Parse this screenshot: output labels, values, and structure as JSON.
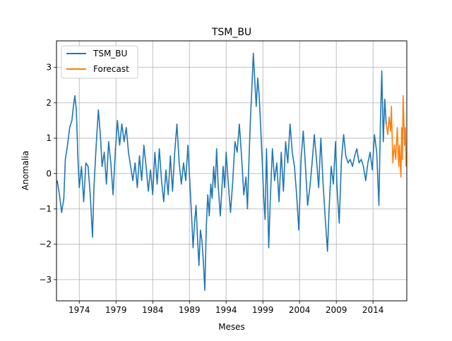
{
  "chart_data": {
    "type": "line",
    "title": "TSM_BU",
    "xlabel": "Meses",
    "ylabel": "Anomalia",
    "xlim": [
      1970.9,
      2018.6
    ],
    "ylim": [
      -3.6,
      3.75
    ],
    "x_ticks": [
      1974,
      1979,
      1984,
      1989,
      1994,
      1999,
      2004,
      2009,
      2014
    ],
    "x_tick_labels": [
      "1974",
      "1979",
      "1984",
      "1989",
      "1994",
      "1999",
      "2004",
      "2009",
      "2014"
    ],
    "y_ticks": [
      -3,
      -2,
      -1,
      0,
      1,
      2,
      3
    ],
    "y_tick_labels": [
      "−3",
      "−2",
      "−1",
      "0",
      "1",
      "2",
      "3"
    ],
    "grid": true,
    "legend_position": "upper-left",
    "series": [
      {
        "name": "TSM_BU",
        "color": "#1f77b4",
        "points": [
          [
            1971.0,
            -0.2
          ],
          [
            1971.3,
            -0.6
          ],
          [
            1971.6,
            -1.1
          ],
          [
            1971.9,
            -0.7
          ],
          [
            1972.1,
            0.4
          ],
          [
            1972.4,
            0.8
          ],
          [
            1972.7,
            1.3
          ],
          [
            1973.0,
            1.5
          ],
          [
            1973.2,
            1.9
          ],
          [
            1973.4,
            2.2
          ],
          [
            1973.6,
            1.8
          ],
          [
            1973.8,
            0.5
          ],
          [
            1974.0,
            -0.4
          ],
          [
            1974.3,
            0.2
          ],
          [
            1974.6,
            -0.8
          ],
          [
            1974.9,
            0.3
          ],
          [
            1975.2,
            0.2
          ],
          [
            1975.5,
            -0.6
          ],
          [
            1975.8,
            -1.8
          ],
          [
            1976.0,
            -0.4
          ],
          [
            1976.3,
            0.8
          ],
          [
            1976.6,
            1.8
          ],
          [
            1976.9,
            1.0
          ],
          [
            1977.1,
            0.2
          ],
          [
            1977.4,
            0.6
          ],
          [
            1977.7,
            -0.3
          ],
          [
            1978.0,
            0.9
          ],
          [
            1978.3,
            0.3
          ],
          [
            1978.6,
            -0.6
          ],
          [
            1978.9,
            0.6
          ],
          [
            1979.2,
            1.5
          ],
          [
            1979.5,
            0.8
          ],
          [
            1979.8,
            1.4
          ],
          [
            1980.1,
            0.9
          ],
          [
            1980.4,
            1.3
          ],
          [
            1980.7,
            0.6
          ],
          [
            1981.0,
            0.2
          ],
          [
            1981.3,
            -0.2
          ],
          [
            1981.6,
            0.3
          ],
          [
            1981.9,
            -0.4
          ],
          [
            1982.2,
            0.5
          ],
          [
            1982.5,
            -0.2
          ],
          [
            1982.8,
            0.8
          ],
          [
            1983.1,
            0.2
          ],
          [
            1983.4,
            -0.5
          ],
          [
            1983.7,
            0.1
          ],
          [
            1984.0,
            -0.6
          ],
          [
            1984.3,
            0.6
          ],
          [
            1984.6,
            -0.3
          ],
          [
            1984.9,
            0.7
          ],
          [
            1985.2,
            -0.2
          ],
          [
            1985.5,
            -0.8
          ],
          [
            1985.8,
            0.1
          ],
          [
            1986.1,
            -0.6
          ],
          [
            1986.4,
            0.5
          ],
          [
            1986.7,
            -0.5
          ],
          [
            1987.0,
            0.6
          ],
          [
            1987.3,
            1.4
          ],
          [
            1987.6,
            0.3
          ],
          [
            1987.9,
            -0.3
          ],
          [
            1988.2,
            0.3
          ],
          [
            1988.5,
            -0.2
          ],
          [
            1988.8,
            0.8
          ],
          [
            1989.1,
            -0.4
          ],
          [
            1989.3,
            -1.2
          ],
          [
            1989.5,
            -2.1
          ],
          [
            1989.7,
            -1.4
          ],
          [
            1989.9,
            -0.9
          ],
          [
            1990.1,
            -1.8
          ],
          [
            1990.3,
            -2.6
          ],
          [
            1990.5,
            -1.6
          ],
          [
            1990.7,
            -1.9
          ],
          [
            1990.9,
            -2.5
          ],
          [
            1991.1,
            -3.3
          ],
          [
            1991.3,
            -1.5
          ],
          [
            1991.5,
            -0.6
          ],
          [
            1991.7,
            -1.2
          ],
          [
            1991.9,
            -0.3
          ],
          [
            1992.1,
            -0.7
          ],
          [
            1992.3,
            0.2
          ],
          [
            1992.5,
            -0.4
          ],
          [
            1992.7,
            0.7
          ],
          [
            1992.9,
            -0.3
          ],
          [
            1993.2,
            -1.2
          ],
          [
            1993.4,
            -0.5
          ],
          [
            1993.6,
            0.2
          ],
          [
            1993.8,
            -0.4
          ],
          [
            1994.0,
            0.6
          ],
          [
            1994.3,
            -0.3
          ],
          [
            1994.6,
            -1.1
          ],
          [
            1994.9,
            -0.2
          ],
          [
            1995.2,
            0.9
          ],
          [
            1995.5,
            0.6
          ],
          [
            1995.8,
            1.4
          ],
          [
            1996.1,
            0.5
          ],
          [
            1996.4,
            -0.6
          ],
          [
            1996.7,
            -0.1
          ],
          [
            1996.9,
            -1.0
          ],
          [
            1997.1,
            0.3
          ],
          [
            1997.3,
            1.5
          ],
          [
            1997.5,
            2.4
          ],
          [
            1997.7,
            3.4
          ],
          [
            1997.9,
            2.6
          ],
          [
            1998.1,
            1.9
          ],
          [
            1998.3,
            2.7
          ],
          [
            1998.5,
            2.2
          ],
          [
            1998.7,
            1.3
          ],
          [
            1998.9,
            0.4
          ],
          [
            1999.1,
            -0.6
          ],
          [
            1999.3,
            -1.3
          ],
          [
            1999.5,
            0.7
          ],
          [
            1999.8,
            -2.1
          ],
          [
            2000.0,
            -0.8
          ],
          [
            2000.3,
            0.7
          ],
          [
            2000.6,
            -0.2
          ],
          [
            2000.9,
            0.3
          ],
          [
            2001.2,
            -0.8
          ],
          [
            2001.5,
            0.6
          ],
          [
            2001.8,
            -0.5
          ],
          [
            2002.1,
            0.9
          ],
          [
            2002.4,
            0.3
          ],
          [
            2002.7,
            1.4
          ],
          [
            2003.0,
            0.6
          ],
          [
            2003.3,
            0.2
          ],
          [
            2003.6,
            -0.6
          ],
          [
            2003.9,
            -1.6
          ],
          [
            2004.2,
            0.4
          ],
          [
            2004.5,
            1.2
          ],
          [
            2004.8,
            0.2
          ],
          [
            2005.1,
            -0.9
          ],
          [
            2005.4,
            -0.4
          ],
          [
            2005.7,
            0.3
          ],
          [
            2006.0,
            1.1
          ],
          [
            2006.3,
            0.4
          ],
          [
            2006.6,
            -0.4
          ],
          [
            2006.9,
            1.0
          ],
          [
            2007.2,
            -0.3
          ],
          [
            2007.5,
            -1.3
          ],
          [
            2007.8,
            -2.2
          ],
          [
            2008.0,
            -1.1
          ],
          [
            2008.3,
            0.2
          ],
          [
            2008.6,
            -0.3
          ],
          [
            2008.9,
            0.9
          ],
          [
            2009.1,
            -0.4
          ],
          [
            2009.4,
            -1.4
          ],
          [
            2009.7,
            0.4
          ],
          [
            2010.0,
            1.1
          ],
          [
            2010.3,
            0.5
          ],
          [
            2010.6,
            0.3
          ],
          [
            2010.9,
            0.4
          ],
          [
            2011.2,
            0.2
          ],
          [
            2011.5,
            0.5
          ],
          [
            2011.8,
            0.7
          ],
          [
            2012.1,
            0.3
          ],
          [
            2012.4,
            0.4
          ],
          [
            2012.7,
            0.2
          ],
          [
            2013.0,
            -0.2
          ],
          [
            2013.3,
            0.3
          ],
          [
            2013.6,
            0.6
          ],
          [
            2013.9,
            0.1
          ],
          [
            2014.2,
            1.1
          ],
          [
            2014.5,
            0.6
          ],
          [
            2014.8,
            -0.9
          ],
          [
            2015.0,
            1.4
          ],
          [
            2015.2,
            2.9
          ],
          [
            2015.4,
            0.9
          ],
          [
            2015.6,
            2.1
          ],
          [
            2015.8,
            1.4
          ]
        ]
      },
      {
        "name": "Forecast",
        "color": "#ff7f0e",
        "points": [
          [
            2015.8,
            1.4
          ],
          [
            2016.0,
            1.1
          ],
          [
            2016.2,
            1.6
          ],
          [
            2016.4,
            1.2
          ],
          [
            2016.5,
            1.9
          ],
          [
            2016.7,
            0.3
          ],
          [
            2016.9,
            0.8
          ],
          [
            2017.1,
            0.4
          ],
          [
            2017.3,
            1.3
          ],
          [
            2017.5,
            0.2
          ],
          [
            2017.6,
            0.8
          ],
          [
            2017.8,
            -0.1
          ],
          [
            2017.9,
            1.3
          ],
          [
            2018.0,
            0.4
          ],
          [
            2018.1,
            2.2
          ],
          [
            2018.3,
            0.8
          ],
          [
            2018.4,
            1.3
          ],
          [
            2018.5,
            0.2
          ]
        ]
      }
    ]
  }
}
